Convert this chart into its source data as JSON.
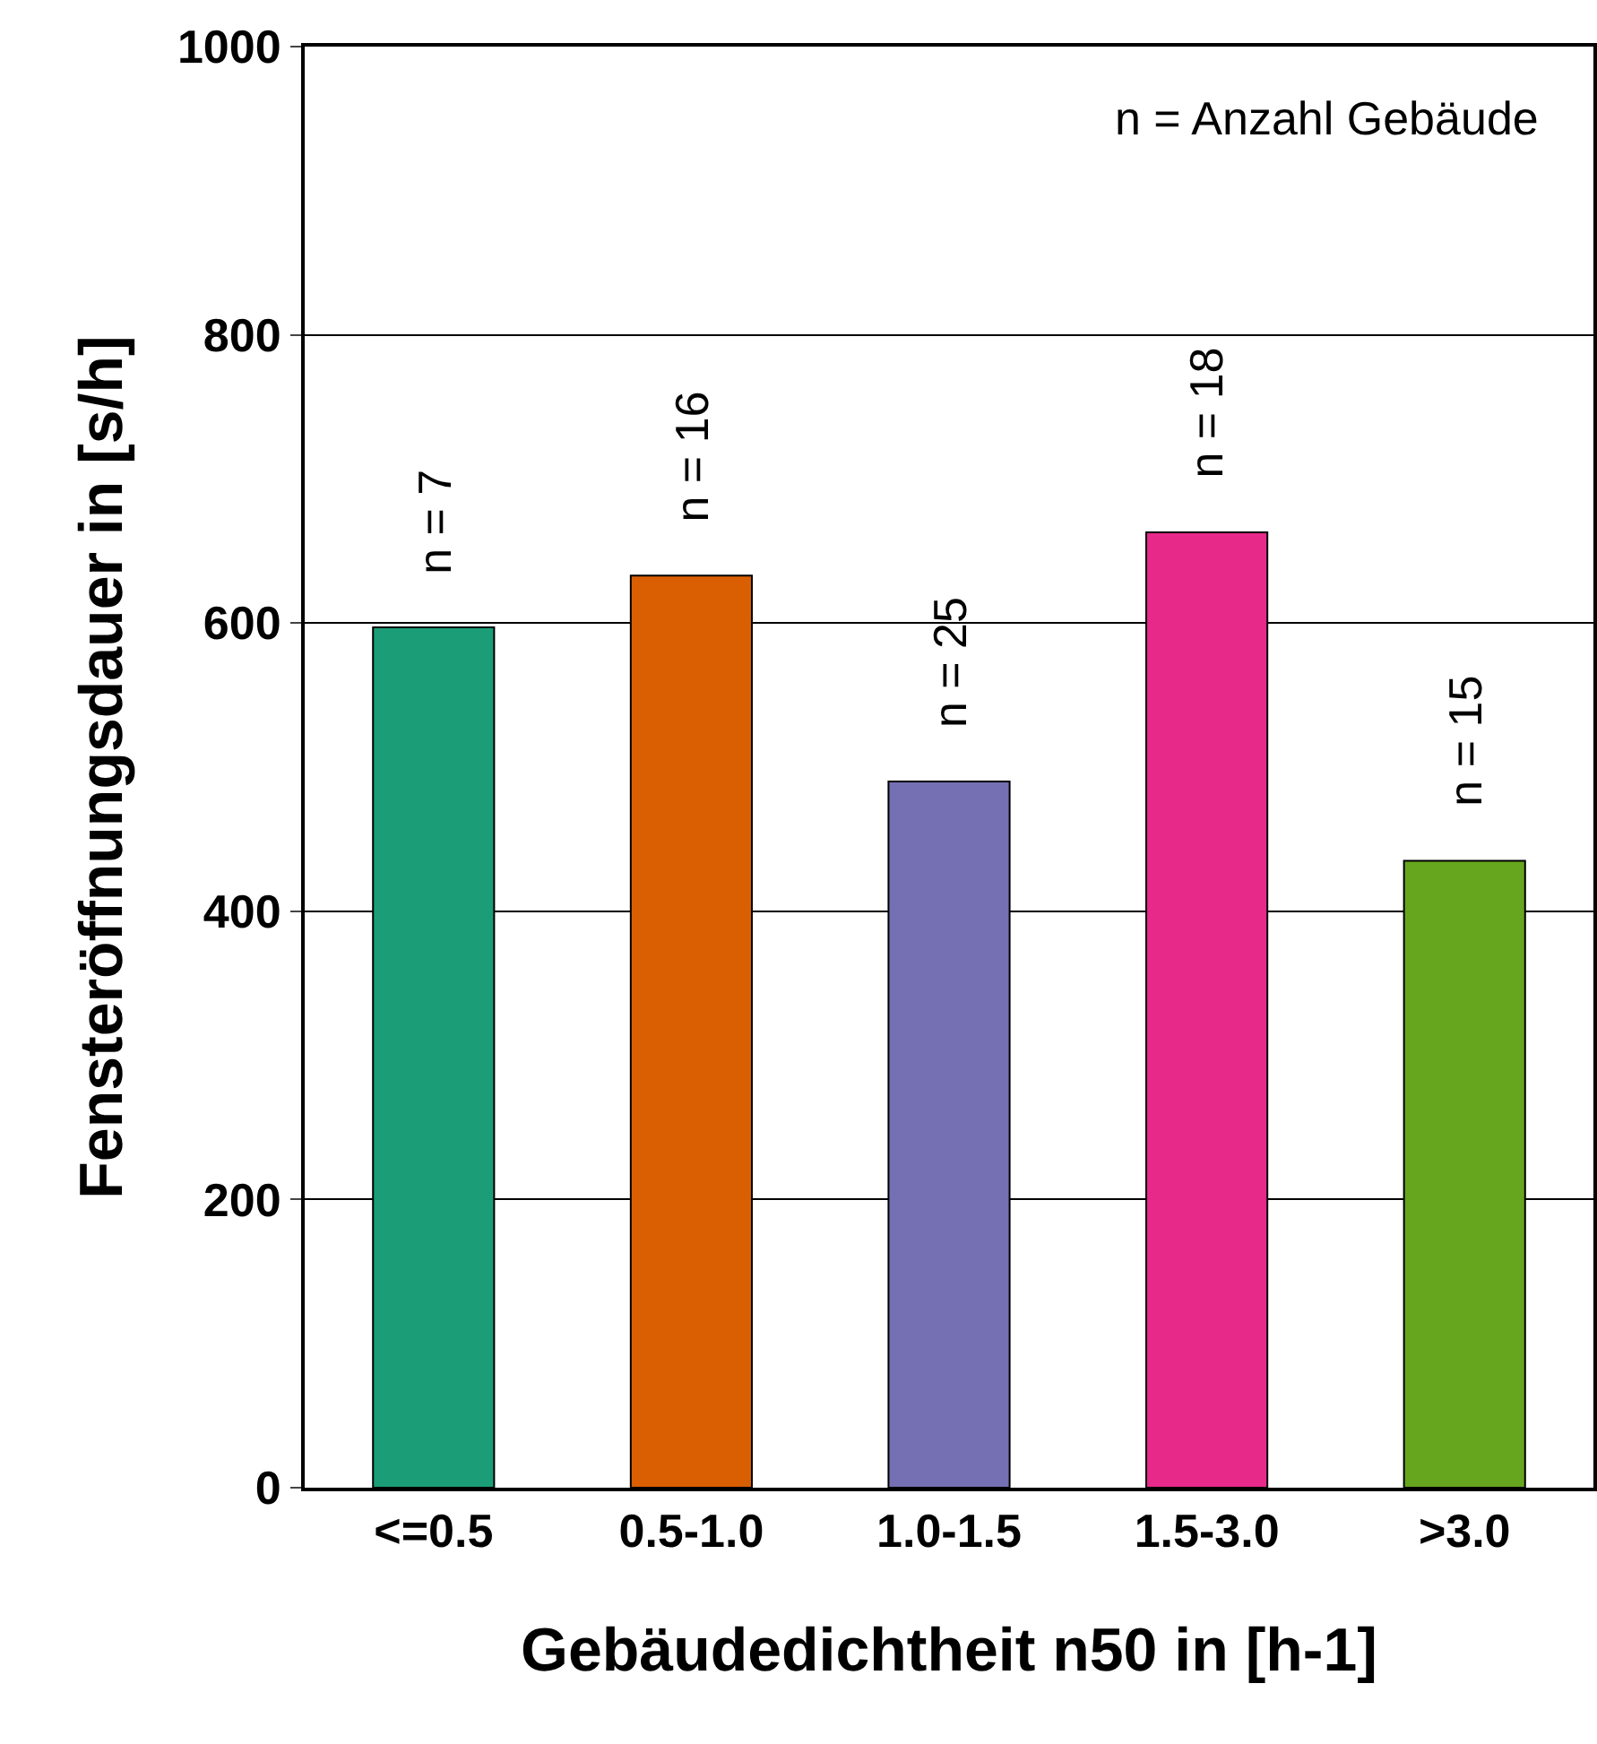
{
  "chart_data": {
    "type": "bar",
    "xlabel": "Gebäudedichtheit n50 in [h-1]",
    "ylabel": "Fensteröffnungsdauer in [s/h]",
    "categories": [
      "<=0.5",
      "0.5-1.0",
      "1.0-1.5",
      "1.5-3.0",
      ">3.0"
    ],
    "values": [
      597,
      633,
      490,
      663,
      435
    ],
    "colors": [
      "#1b9e77",
      "#d95f02",
      "#7570b3",
      "#e7298a",
      "#66a61e"
    ],
    "ylim": [
      0,
      1000
    ],
    "yticks": [
      0,
      200,
      400,
      600,
      800,
      1000
    ],
    "grid": "y",
    "annotations": [
      {
        "text": "n = 7",
        "x": "<=0.5",
        "y": 597
      },
      {
        "text": "n = 16",
        "x": "0.5-1.0",
        "y": 633
      },
      {
        "text": "n = 25",
        "x": "1.0-1.5",
        "y": 490
      },
      {
        "text": "n = 18",
        "x": "1.5-3.0",
        "y": 663
      },
      {
        "text": "n = 15",
        "x": ">3.0",
        "y": 435
      },
      "n = Anzahl Gebäude"
    ]
  }
}
